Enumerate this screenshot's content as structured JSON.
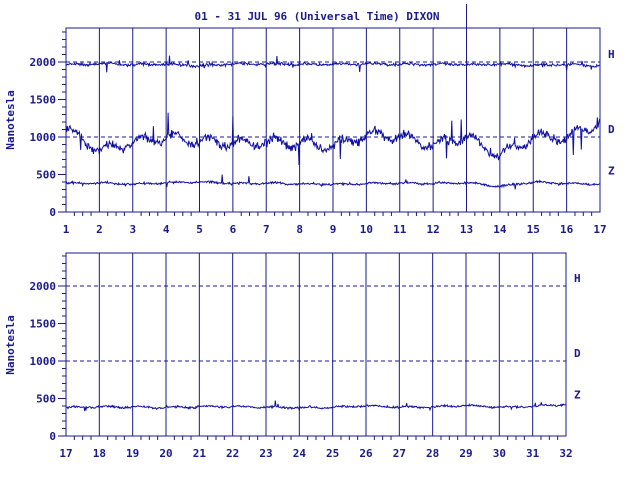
{
  "title": "01 - 31 JUL 96 (Universal Time) DIXON",
  "colors": {
    "ink": "#1a1a8c",
    "trace": "#1010a0",
    "background": "#ffffff"
  },
  "chart_data": [
    {
      "type": "line",
      "panel": "top",
      "ylabel": "Nanotesla",
      "ylim": [
        0,
        2400
      ],
      "yticks": [
        0,
        500,
        1000,
        1500,
        2000
      ],
      "xlim": [
        1,
        17
      ],
      "xticks": [
        "1",
        "2",
        "3",
        "4",
        "5",
        "6",
        "7",
        "8",
        "9",
        "10",
        "11",
        "12",
        "13",
        "14",
        "15",
        "16",
        "17"
      ],
      "dashed_levels": [
        2000,
        1000
      ],
      "grid": "vertical lines at each day",
      "series": [
        {
          "name": "H",
          "baseline": 1970,
          "values_by_day": [
            1960,
            1975,
            1965,
            1970,
            1950,
            1975,
            1970,
            1970,
            1965,
            1975,
            1970,
            1970,
            1965,
            1970,
            1955,
            1970,
            1950
          ]
        },
        {
          "name": "D",
          "baseline": 970,
          "values_by_day": [
            1100,
            820,
            930,
            1000,
            950,
            910,
            930,
            920,
            880,
            1030,
            1000,
            900,
            1010,
            750,
            1000,
            1000,
            1180
          ]
        },
        {
          "name": "Z",
          "baseline": 380,
          "values_by_day": [
            380,
            390,
            370,
            390,
            400,
            380,
            385,
            375,
            370,
            380,
            385,
            380,
            390,
            340,
            400,
            380,
            370
          ]
        }
      ]
    },
    {
      "type": "line",
      "panel": "bottom",
      "ylabel": "Nanotesla",
      "ylim": [
        0,
        2400
      ],
      "yticks": [
        0,
        500,
        1000,
        1500,
        2000
      ],
      "xlim": [
        17,
        32
      ],
      "xticks": [
        "17",
        "18",
        "19",
        "20",
        "21",
        "22",
        "23",
        "24",
        "25",
        "26",
        "27",
        "28",
        "29",
        "30",
        "31",
        "32"
      ],
      "dashed_levels": [
        2000,
        1000
      ],
      "grid": "vertical lines at each day",
      "series": [
        {
          "name": "H",
          "baseline": null,
          "values_by_day": []
        },
        {
          "name": "D",
          "baseline": null,
          "values_by_day": []
        },
        {
          "name": "Z",
          "baseline": 385,
          "values_by_day": [
            380,
            390,
            385,
            380,
            390,
            395,
            385,
            380,
            385,
            400,
            385,
            385,
            410,
            385,
            395,
            420
          ]
        }
      ]
    }
  ]
}
